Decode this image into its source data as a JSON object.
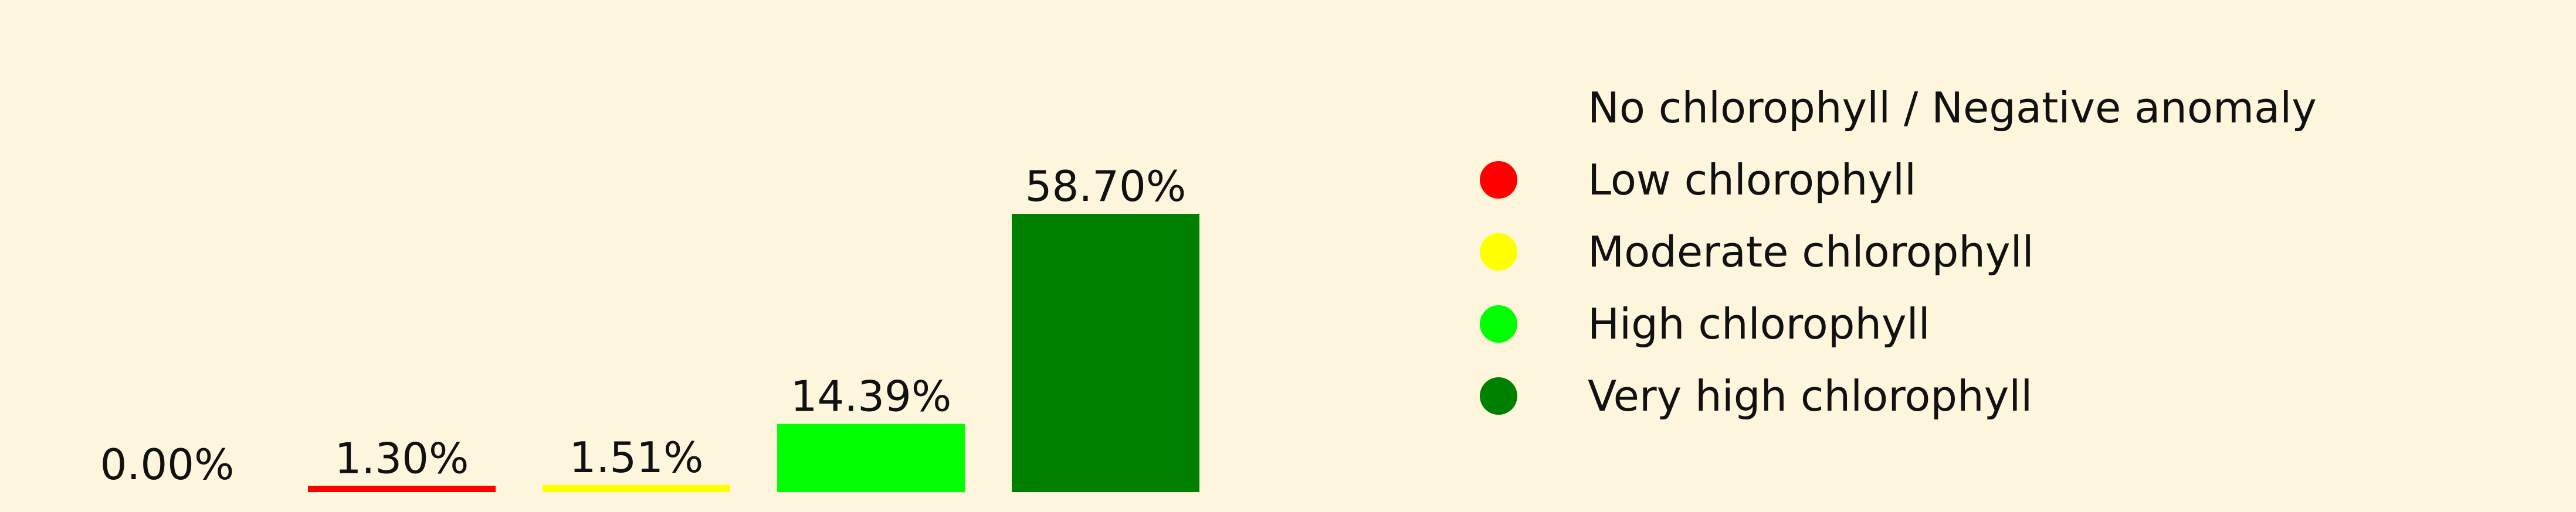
{
  "page": {
    "background": "#fdf6dc"
  },
  "chart_data": {
    "type": "bar",
    "title": "",
    "xlabel": "",
    "ylabel": "",
    "ylim": [
      0,
      58.7
    ],
    "grid": false,
    "categories": [
      "No chlorophyll / Negative anomaly",
      "Low chlorophyll",
      "Moderate chlorophyll",
      "High chlorophyll",
      "Very high chlorophyll"
    ],
    "values": [
      0.0,
      1.3,
      1.51,
      14.39,
      58.7
    ],
    "value_labels": [
      "0.00%",
      "1.30%",
      "1.51%",
      "14.39%",
      "58.70%"
    ],
    "colors": [
      "#fdf6dc",
      "#ff0000",
      "#ffff00",
      "#00ff00",
      "#008000"
    ],
    "legend": {
      "placement": "right",
      "entries": [
        {
          "label": "No chlorophyll / Negative anomaly",
          "color": "#fdf6dc"
        },
        {
          "label": "Low chlorophyll",
          "color": "#ff0000"
        },
        {
          "label": "Moderate chlorophyll",
          "color": "#ffff00"
        },
        {
          "label": "High chlorophyll",
          "color": "#00ff00"
        },
        {
          "label": "Very high chlorophyll",
          "color": "#008000"
        }
      ]
    }
  }
}
